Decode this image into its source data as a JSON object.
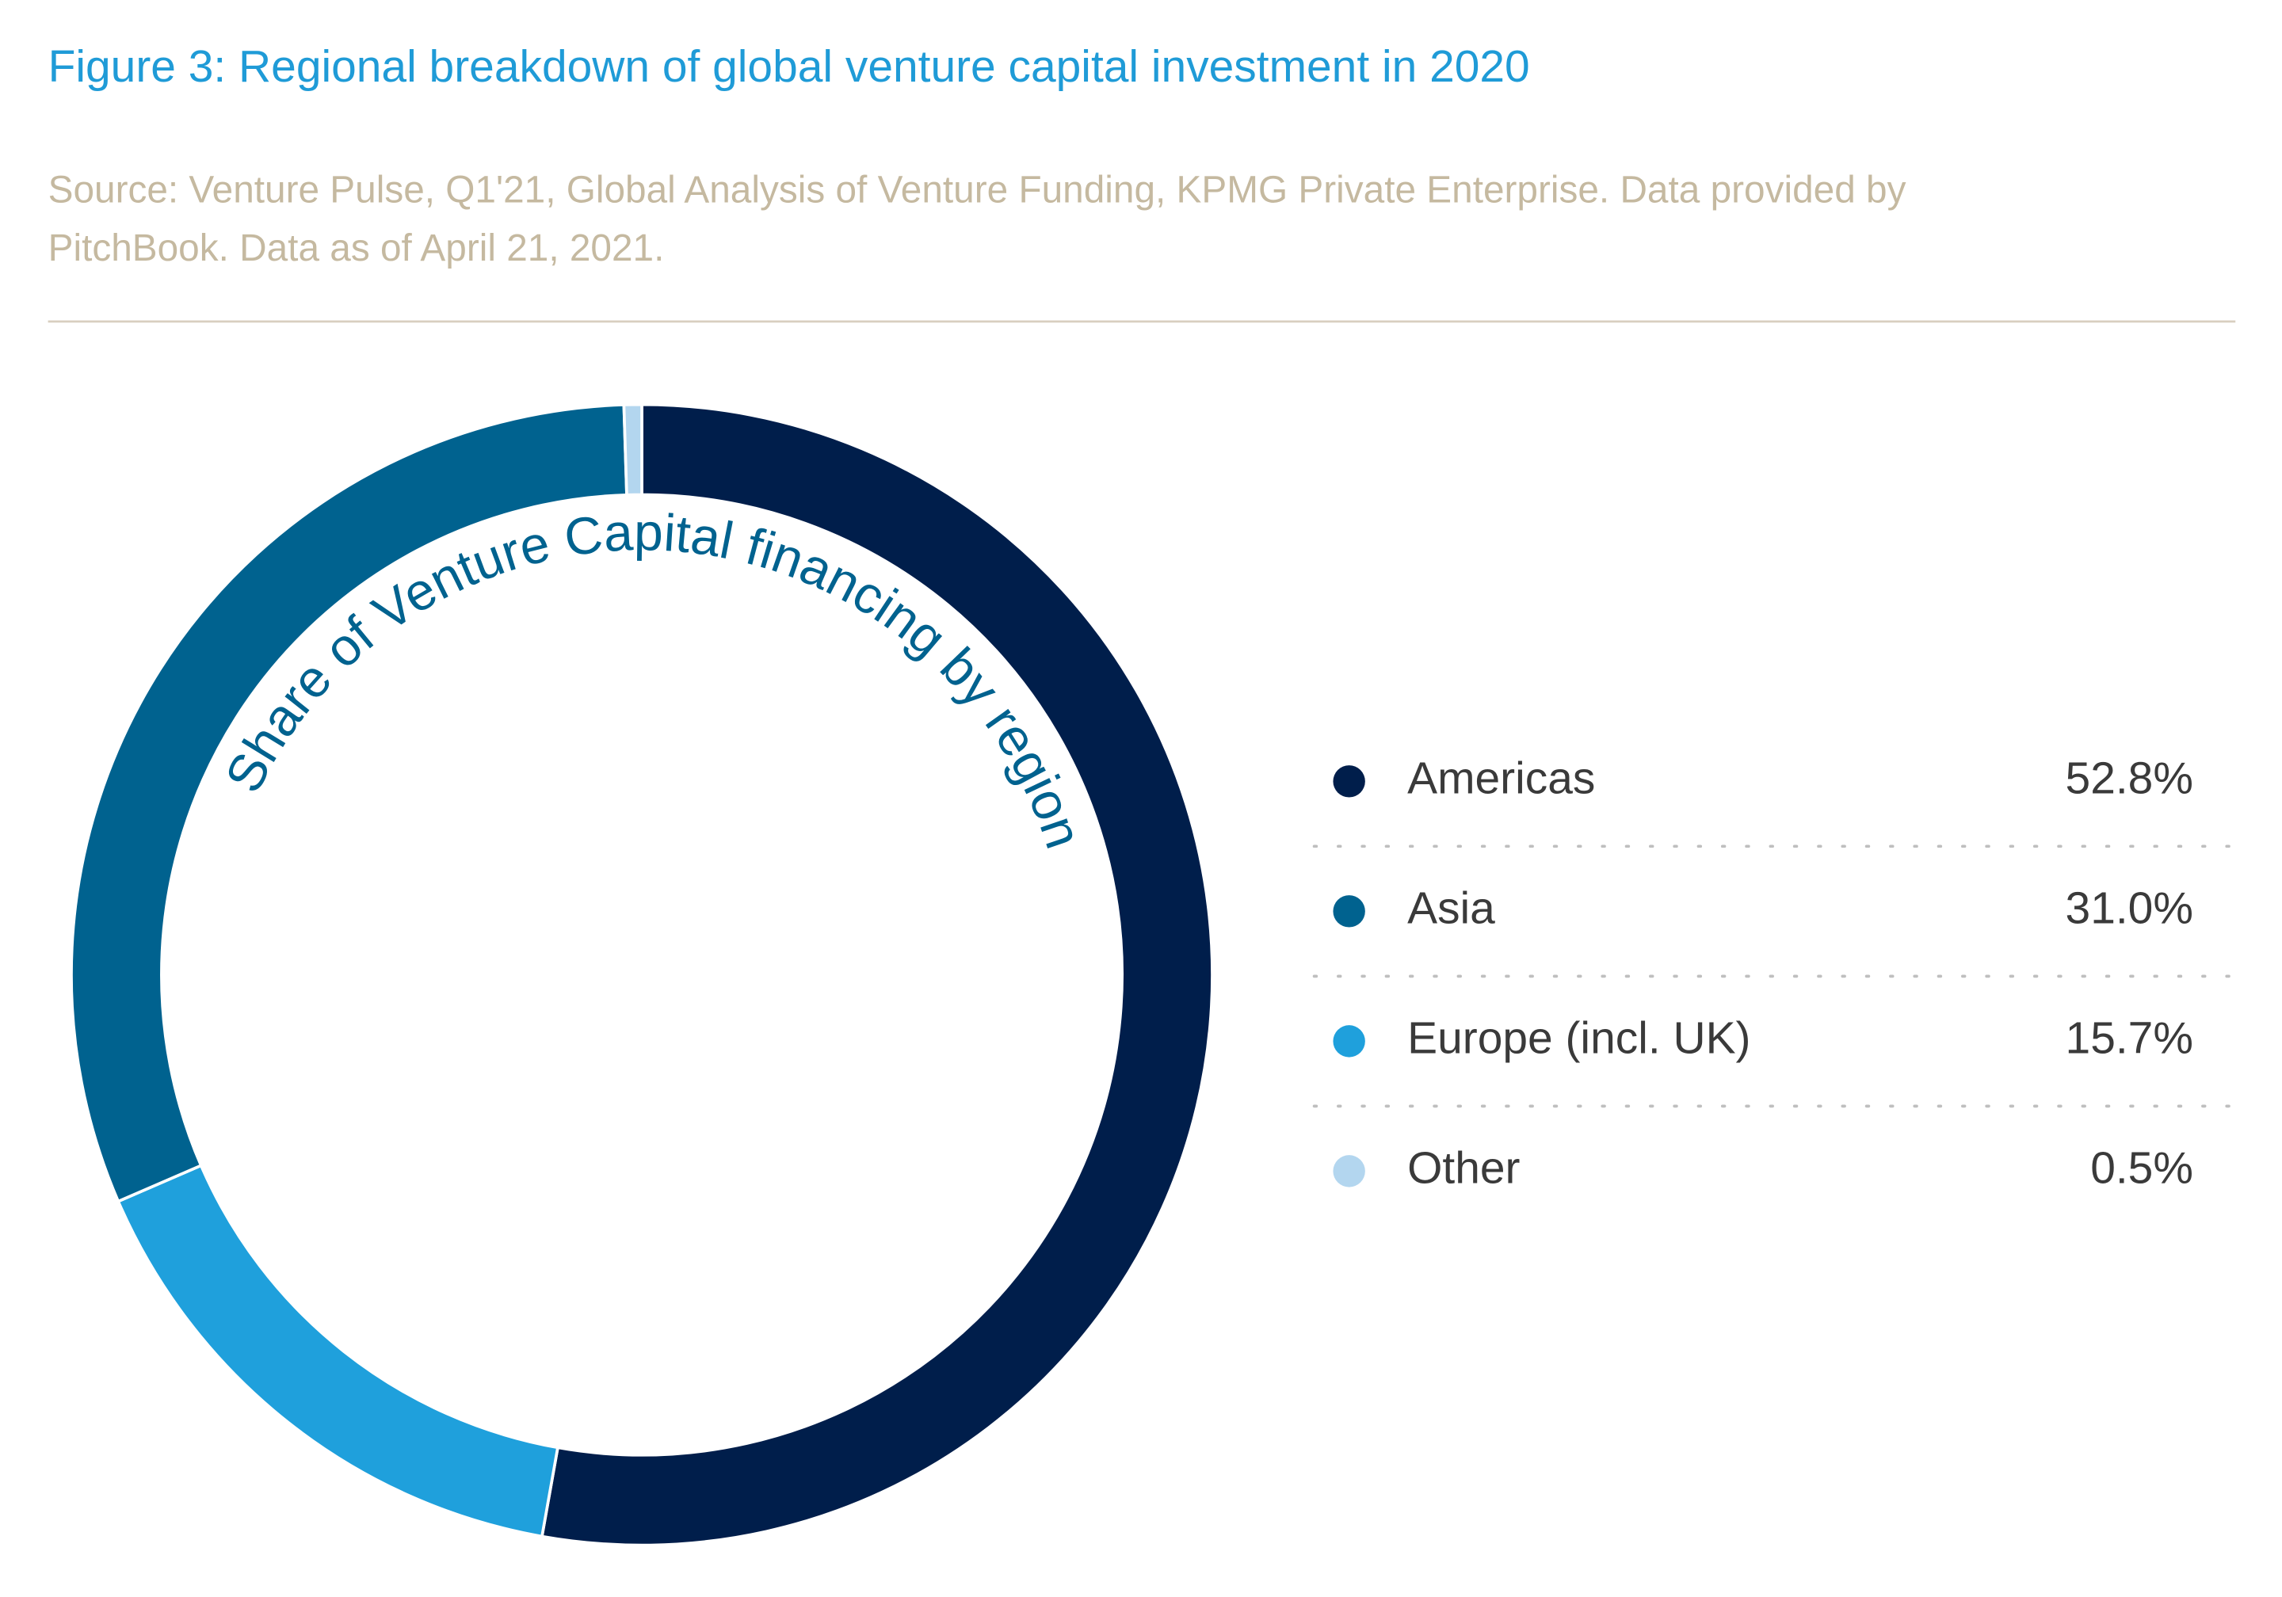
{
  "chart_data": {
    "type": "donut",
    "title": "Figure 3: Regional breakdown of global venture capital investment in 2020",
    "source": [
      "Source: Venture Pulse, Q1'21, Global Analysis of Venture Funding, KPMG Private Enterprise. Data provided by",
      "PitchBook. Data as of April 21, 2021."
    ],
    "inner_label": "Share of Venture Capital financing by region",
    "categories": [
      "Americas",
      "Asia",
      "Europe (incl. UK)",
      "Other"
    ],
    "values": [
      52.8,
      31.0,
      15.7,
      0.5
    ],
    "value_labels": [
      "52.8%",
      "31.0%",
      "15.7%",
      "0.5%"
    ],
    "colors": [
      "#001e4b",
      "#00628f",
      "#1fa0dc",
      "#b3d6ef"
    ],
    "legend": "right"
  }
}
